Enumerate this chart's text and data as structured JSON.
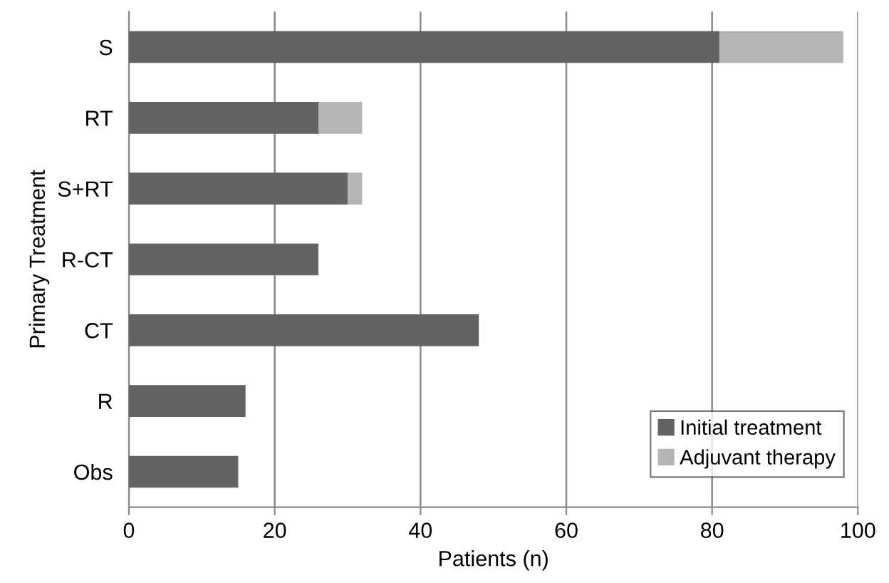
{
  "chart_data": {
    "type": "bar",
    "orientation": "horizontal",
    "stacked": true,
    "categories": [
      "S",
      "RT",
      "S+RT",
      "R-CT",
      "CT",
      "R",
      "Obs"
    ],
    "series": [
      {
        "name": "Initial treatment",
        "color": "#636363",
        "values": [
          81,
          26,
          30,
          26,
          48,
          16,
          15
        ]
      },
      {
        "name": "Adjuvant therapy",
        "color": "#b5b5b5",
        "values": [
          17,
          6,
          2,
          0,
          0,
          0,
          0
        ]
      }
    ],
    "xlabel": "Patients (n)",
    "ylabel": "Primary Treatment",
    "xlim": [
      0,
      100
    ],
    "xticks": [
      0,
      20,
      40,
      60,
      80,
      100
    ],
    "grid": "x",
    "legend": "bottom right"
  }
}
